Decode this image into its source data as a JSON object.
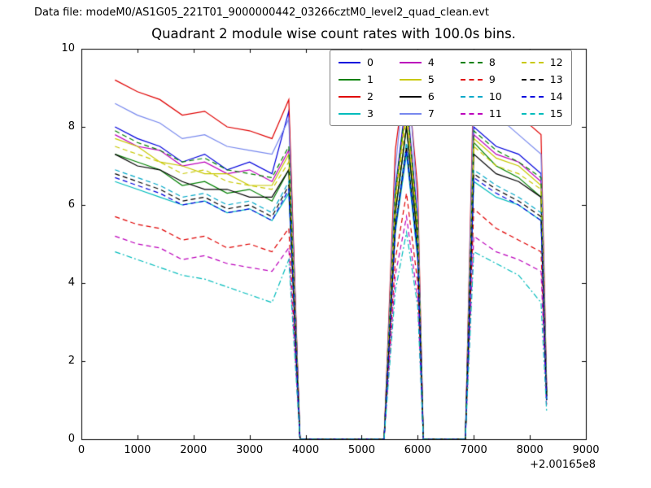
{
  "header": {
    "data_file_label": "Data file: modeM0/AS1G05_221T01_9000000442_03266cztM0_level2_quad_clean.evt"
  },
  "chart_data": {
    "type": "line",
    "title": "Quadrant 2 module wise count rates with 100.0s bins.",
    "xlabel": "",
    "ylabel": "",
    "x_offset_label": "+2.00165e8",
    "xlim": [
      0,
      9000
    ],
    "ylim": [
      0,
      10
    ],
    "x_ticks": [
      0,
      1000,
      2000,
      3000,
      4000,
      5000,
      6000,
      7000,
      8000,
      9000
    ],
    "y_ticks": [
      0,
      2,
      4,
      6,
      8,
      10
    ],
    "grid": false,
    "legend_position": "upper center, 4 columns, inside axes",
    "x": [
      600,
      1000,
      1400,
      1800,
      2200,
      2600,
      3000,
      3400,
      3700,
      3900,
      4400,
      5000,
      5400,
      5600,
      5800,
      6000,
      6100,
      6500,
      6850,
      7000,
      7400,
      7800,
      8200,
      8300
    ],
    "series": [
      {
        "name": "0",
        "color": "#0000dd",
        "style": "solid",
        "values": [
          8.0,
          7.7,
          7.5,
          7.1,
          7.3,
          6.9,
          7.1,
          6.8,
          8.4,
          0,
          0,
          0,
          0,
          6.4,
          8.8,
          5.6,
          0,
          0,
          0,
          8.0,
          7.5,
          7.3,
          6.8,
          1.2
        ]
      },
      {
        "name": "1",
        "color": "#008000",
        "style": "solid",
        "values": [
          7.3,
          7.1,
          6.9,
          6.5,
          6.6,
          6.3,
          6.4,
          6.1,
          6.9,
          0,
          0,
          0,
          0,
          5.8,
          8.0,
          5.1,
          0,
          0,
          0,
          7.6,
          7.0,
          6.7,
          6.2,
          1.1
        ]
      },
      {
        "name": "2",
        "color": "#e00000",
        "style": "solid",
        "values": [
          9.2,
          8.9,
          8.7,
          8.3,
          8.4,
          8.0,
          7.9,
          7.7,
          8.7,
          0,
          0,
          0,
          0,
          7.4,
          9.6,
          6.4,
          0,
          0,
          0,
          9.4,
          8.8,
          8.3,
          7.8,
          1.4
        ]
      },
      {
        "name": "3",
        "color": "#00bcbc",
        "style": "solid",
        "values": [
          6.6,
          6.4,
          6.2,
          6.0,
          6.1,
          5.8,
          5.9,
          5.6,
          6.3,
          0,
          0,
          0,
          0,
          5.3,
          7.3,
          4.6,
          0,
          0,
          0,
          6.6,
          6.2,
          6.0,
          5.6,
          1.0
        ]
      },
      {
        "name": "4",
        "color": "#bc00bc",
        "style": "solid",
        "values": [
          7.8,
          7.5,
          7.4,
          7.0,
          7.1,
          6.8,
          6.9,
          6.6,
          7.4,
          0,
          0,
          0,
          0,
          6.2,
          8.6,
          5.5,
          0,
          0,
          0,
          7.8,
          7.3,
          7.1,
          6.6,
          1.2
        ]
      },
      {
        "name": "5",
        "color": "#c8c800",
        "style": "solid",
        "values": [
          7.7,
          7.5,
          7.1,
          7.0,
          6.8,
          6.8,
          6.5,
          6.5,
          7.3,
          0,
          0,
          0,
          0,
          6.2,
          8.5,
          5.4,
          0,
          0,
          0,
          7.7,
          7.2,
          7.0,
          6.5,
          1.2
        ]
      },
      {
        "name": "6",
        "color": "#000000",
        "style": "solid",
        "values": [
          7.3,
          7.0,
          6.9,
          6.6,
          6.4,
          6.4,
          6.2,
          6.2,
          6.9,
          0,
          0,
          0,
          0,
          5.8,
          8.0,
          5.1,
          0,
          0,
          0,
          7.3,
          6.8,
          6.6,
          6.2,
          1.1
        ]
      },
      {
        "name": "7",
        "color": "#7788ee",
        "style": "solid",
        "values": [
          8.6,
          8.3,
          8.1,
          7.7,
          7.8,
          7.5,
          7.4,
          7.3,
          8.2,
          0,
          0,
          0,
          0,
          6.9,
          9.8,
          6.0,
          0,
          0,
          0,
          8.9,
          8.3,
          7.8,
          7.3,
          1.3
        ]
      },
      {
        "name": "8",
        "color": "#008000",
        "style": "dashed",
        "values": [
          7.9,
          7.6,
          7.4,
          7.1,
          7.2,
          6.9,
          6.8,
          6.7,
          7.5,
          0,
          0,
          0,
          0,
          6.3,
          8.7,
          5.5,
          0,
          0,
          0,
          7.9,
          7.4,
          7.1,
          6.7,
          1.2
        ]
      },
      {
        "name": "9",
        "color": "#e00000",
        "style": "dashed",
        "values": [
          5.7,
          5.5,
          5.4,
          5.1,
          5.2,
          4.9,
          5.0,
          4.8,
          5.4,
          0,
          0,
          0,
          0,
          4.6,
          6.3,
          4.0,
          0,
          0,
          0,
          5.9,
          5.4,
          5.1,
          4.8,
          0.9
        ]
      },
      {
        "name": "10",
        "color": "#00a8c8",
        "style": "dashed",
        "values": [
          6.9,
          6.7,
          6.5,
          6.2,
          6.3,
          6.0,
          6.1,
          5.8,
          6.6,
          0,
          0,
          0,
          0,
          5.5,
          7.6,
          4.8,
          0,
          0,
          0,
          6.9,
          6.5,
          6.2,
          5.8,
          1.0
        ]
      },
      {
        "name": "11",
        "color": "#bc00bc",
        "style": "dashed",
        "values": [
          5.2,
          5.0,
          4.9,
          4.6,
          4.7,
          4.5,
          4.4,
          4.3,
          4.9,
          0,
          0,
          0,
          0,
          4.2,
          5.7,
          3.6,
          0,
          0,
          0,
          5.2,
          4.8,
          4.6,
          4.3,
          0.8
        ]
      },
      {
        "name": "12",
        "color": "#c8c800",
        "style": "dashed",
        "values": [
          7.5,
          7.3,
          7.1,
          6.8,
          6.9,
          6.6,
          6.5,
          6.4,
          7.1,
          0,
          0,
          0,
          0,
          6.0,
          8.3,
          5.3,
          0,
          0,
          0,
          7.5,
          7.0,
          6.8,
          6.4,
          1.1
        ]
      },
      {
        "name": "13",
        "color": "#000000",
        "style": "dashed",
        "values": [
          6.8,
          6.6,
          6.4,
          6.1,
          6.2,
          5.9,
          6.0,
          5.7,
          6.5,
          0,
          0,
          0,
          0,
          5.4,
          7.5,
          4.8,
          0,
          0,
          0,
          6.8,
          6.4,
          6.1,
          5.7,
          1.0
        ]
      },
      {
        "name": "14",
        "color": "#0000dd",
        "style": "dashed",
        "values": [
          6.7,
          6.5,
          6.3,
          6.0,
          6.1,
          5.8,
          5.9,
          5.6,
          6.4,
          0,
          0,
          0,
          0,
          5.4,
          7.4,
          4.7,
          0,
          0,
          0,
          6.7,
          6.3,
          6.0,
          5.6,
          1.0
        ]
      },
      {
        "name": "15",
        "color": "#00bcbc",
        "style": "dashdot",
        "values": [
          4.8,
          4.6,
          4.4,
          4.2,
          4.1,
          3.9,
          3.7,
          3.5,
          4.6,
          0,
          0,
          0,
          0,
          3.8,
          5.3,
          3.4,
          0,
          0,
          0,
          4.8,
          4.5,
          4.2,
          3.5,
          0.7
        ]
      }
    ]
  }
}
